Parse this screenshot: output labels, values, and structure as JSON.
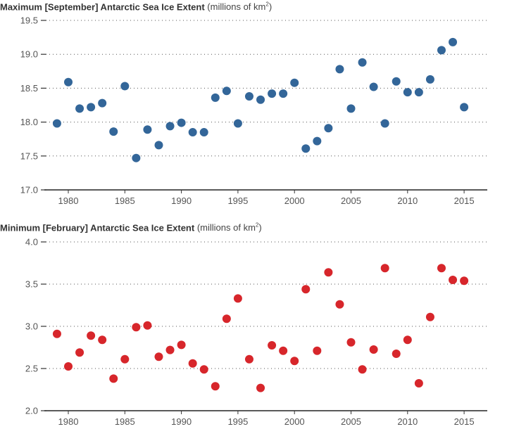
{
  "chart_data": [
    {
      "type": "scatter",
      "title_bold": "Maximum [September] Antarctic Sea Ice Extent",
      "title_unit": "(millions of km",
      "title_unit_sup": "2",
      "title_unit_close": ")",
      "xlabel": "",
      "ylabel": "millions of km²",
      "color": "#336699",
      "xlim": [
        1977,
        2017.3
      ],
      "ylim": [
        17.0,
        19.5
      ],
      "yticks": [
        "17.0",
        "17.5",
        "18.0",
        "18.5",
        "19.0",
        "19.5"
      ],
      "xticks": [
        "1980",
        "1985",
        "1990",
        "1995",
        "2000",
        "2005",
        "2010",
        "2015"
      ],
      "grid": "dotted-horizontal",
      "x": [
        1979,
        1980,
        1981,
        1982,
        1983,
        1984,
        1985,
        1986,
        1987,
        1988,
        1989,
        1990,
        1991,
        1992,
        1993,
        1994,
        1995,
        1996,
        1997,
        1998,
        1999,
        2000,
        2001,
        2002,
        2003,
        2004,
        2005,
        2006,
        2007,
        2008,
        2009,
        2010,
        2011,
        2012,
        2013,
        2014,
        2015
      ],
      "y": [
        17.98,
        18.59,
        18.2,
        18.22,
        18.28,
        17.86,
        18.53,
        17.47,
        17.89,
        17.66,
        17.94,
        17.99,
        17.85,
        17.85,
        18.36,
        18.46,
        17.98,
        18.38,
        18.33,
        18.42,
        18.42,
        18.58,
        17.61,
        17.72,
        17.91,
        18.78,
        18.2,
        18.88,
        18.52,
        17.98,
        18.6,
        18.44,
        18.44,
        18.63,
        19.06,
        19.18,
        18.22
      ]
    },
    {
      "type": "scatter",
      "title_bold": "Minimum [February] Antarctic Sea Ice Extent",
      "title_unit": "(millions of km",
      "title_unit_sup": "2",
      "title_unit_close": ")",
      "xlabel": "",
      "ylabel": "millions of km²",
      "color": "#d7262b",
      "xlim": [
        1977,
        2017.3
      ],
      "ylim": [
        2.0,
        4.0
      ],
      "yticks": [
        "2.0",
        "2.5",
        "3.0",
        "3.5",
        "4.0"
      ],
      "xticks": [
        "1980",
        "1985",
        "1990",
        "1995",
        "2000",
        "2005",
        "2010",
        "2015"
      ],
      "grid": "dotted-horizontal",
      "x": [
        1979,
        1980,
        1981,
        1982,
        1983,
        1984,
        1985,
        1986,
        1987,
        1988,
        1989,
        1990,
        1991,
        1992,
        1993,
        1994,
        1995,
        1996,
        1997,
        1998,
        1999,
        2000,
        2001,
        2002,
        2003,
        2004,
        2005,
        2006,
        2007,
        2008,
        2009,
        2010,
        2011,
        2012,
        2013,
        2014,
        2015
      ],
      "y": [
        2.91,
        2.525,
        2.69,
        2.89,
        2.84,
        2.38,
        2.61,
        2.99,
        3.01,
        2.64,
        2.72,
        2.78,
        2.56,
        2.49,
        2.29,
        3.09,
        3.33,
        2.61,
        2.27,
        2.775,
        2.71,
        2.59,
        3.44,
        2.71,
        3.64,
        3.26,
        2.81,
        2.49,
        2.725,
        3.69,
        2.675,
        2.84,
        2.325,
        3.11,
        3.69,
        3.55,
        3.54
      ]
    }
  ]
}
